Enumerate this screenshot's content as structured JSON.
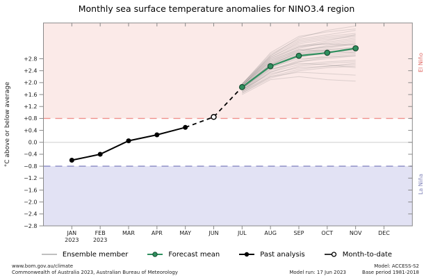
{
  "title": "Monthly sea surface temperature anomalies for NINO3.4 region",
  "chart_data": {
    "type": "line",
    "months": [
      "JAN",
      "FEB",
      "MAR",
      "APR",
      "MAY",
      "JUN",
      "JUL",
      "AUG",
      "SEP",
      "OCT",
      "NOV",
      "DEC"
    ],
    "year_row": [
      "2023",
      "2023",
      "",
      "",
      "",
      "",
      "",
      "",
      "",
      "",
      "",
      ""
    ],
    "ylabel": "°C above or below average",
    "ylim": [
      -2.8,
      4.0
    ],
    "ytick_labels": [
      "+2.8",
      "+2.4",
      "+2.0",
      "+1.6",
      "+1.2",
      "+0.8",
      "+0.4",
      "0.0",
      "−0.4",
      "−0.8",
      "−1.2",
      "−1.6",
      "−2.0",
      "−2.4",
      "−2.8"
    ],
    "ytick_values": [
      2.8,
      2.4,
      2.0,
      1.6,
      1.2,
      0.8,
      0.4,
      0.0,
      -0.4,
      -0.8,
      -1.2,
      -1.6,
      -2.0,
      -2.4,
      -2.8
    ],
    "thresholds": {
      "el_nino": 0.8,
      "la_nina": -0.8
    },
    "band_labels": {
      "upper": "El Niño",
      "lower": "La Niña"
    },
    "grid": "zero-line-only",
    "legend_position": "bottom",
    "past_analysis": {
      "months": [
        "JAN",
        "FEB",
        "MAR",
        "APR",
        "MAY"
      ],
      "values": [
        -0.6,
        -0.4,
        0.05,
        0.25,
        0.5
      ]
    },
    "month_to_date": {
      "month": "JUN",
      "value": 0.85
    },
    "forecast_mean": {
      "months": [
        "JUL",
        "AUG",
        "SEP",
        "OCT",
        "NOV"
      ],
      "values": [
        1.85,
        2.55,
        2.9,
        3.0,
        3.15
      ]
    },
    "ensemble_members": {
      "months": [
        "JUL",
        "AUG",
        "SEP",
        "OCT",
        "NOV"
      ],
      "series": [
        [
          1.85,
          2.6,
          2.95,
          3.1,
          3.2
        ],
        [
          1.9,
          2.8,
          3.2,
          3.3,
          3.45
        ],
        [
          1.8,
          2.45,
          2.7,
          2.8,
          2.9
        ],
        [
          1.75,
          2.3,
          2.5,
          2.55,
          2.6
        ],
        [
          1.95,
          2.9,
          3.4,
          3.55,
          3.65
        ],
        [
          1.7,
          2.2,
          2.35,
          2.3,
          2.25
        ],
        [
          1.85,
          2.7,
          3.05,
          3.2,
          3.35
        ],
        [
          1.9,
          2.75,
          3.1,
          3.05,
          3.0
        ],
        [
          1.65,
          2.15,
          2.4,
          2.5,
          2.55
        ],
        [
          1.8,
          2.5,
          2.85,
          3.0,
          3.1
        ],
        [
          1.95,
          3.0,
          3.55,
          3.7,
          3.8
        ],
        [
          1.85,
          2.65,
          3.0,
          3.15,
          3.3
        ],
        [
          1.7,
          2.35,
          2.6,
          2.7,
          2.75
        ],
        [
          1.9,
          2.85,
          3.3,
          3.45,
          3.55
        ],
        [
          1.6,
          2.1,
          2.2,
          2.1,
          2.05
        ],
        [
          1.8,
          2.55,
          2.9,
          2.95,
          3.05
        ],
        [
          1.85,
          2.6,
          3.0,
          3.1,
          3.15
        ],
        [
          1.75,
          2.4,
          2.75,
          2.9,
          3.0
        ],
        [
          1.95,
          2.95,
          3.45,
          3.6,
          3.75
        ],
        [
          1.9,
          2.7,
          3.15,
          3.35,
          3.5
        ],
        [
          1.8,
          2.5,
          2.8,
          2.85,
          2.9
        ],
        [
          1.7,
          2.25,
          2.55,
          2.65,
          2.7
        ],
        [
          1.85,
          2.75,
          3.2,
          3.4,
          3.6
        ],
        [
          1.9,
          2.9,
          3.5,
          3.75,
          3.9
        ],
        [
          1.75,
          2.45,
          2.65,
          2.6,
          2.5
        ],
        [
          1.8,
          2.6,
          3.05,
          3.25,
          3.4
        ],
        [
          1.65,
          2.2,
          2.45,
          2.55,
          2.65
        ],
        [
          1.9,
          2.8,
          3.25,
          3.3,
          3.25
        ],
        [
          1.85,
          2.55,
          2.95,
          3.05,
          3.1
        ],
        [
          1.75,
          2.35,
          2.7,
          2.85,
          2.95
        ],
        [
          1.95,
          2.85,
          3.35,
          3.5,
          3.6
        ],
        [
          1.8,
          2.65,
          3.1,
          3.2,
          3.3
        ]
      ]
    }
  },
  "legend": [
    {
      "label": "Ensemble member",
      "key": "ensemble"
    },
    {
      "label": "Forecast mean",
      "key": "forecast"
    },
    {
      "label": "Past analysis",
      "key": "past"
    },
    {
      "label": "Month-to-date",
      "key": "mtd"
    }
  ],
  "colors": {
    "el_nino_band": "#fbeae8",
    "la_nina_band": "#e2e2f4",
    "el_nino_dash": "#f0908c",
    "la_nina_dash": "#8f91c7",
    "zero_line": "#d8d8d8",
    "border": "#888888",
    "past": "#000000",
    "forecast": "#2e8f5e",
    "forecast_edge": "#1b4d33",
    "ensemble": "rgba(110,110,110,0.22)",
    "el_nino_text": "#e06a65",
    "la_nina_text": "#7f82b8"
  },
  "footer": {
    "url": "www.bom.gov.au/climate",
    "copyright": "Commonwealth of Australia 2023, Australian Bureau of Meteorology",
    "model_run": "Model run: 17 Jun 2023",
    "model": "Model: ACCESS-S2",
    "base_period": "Base period 1981-2018"
  }
}
